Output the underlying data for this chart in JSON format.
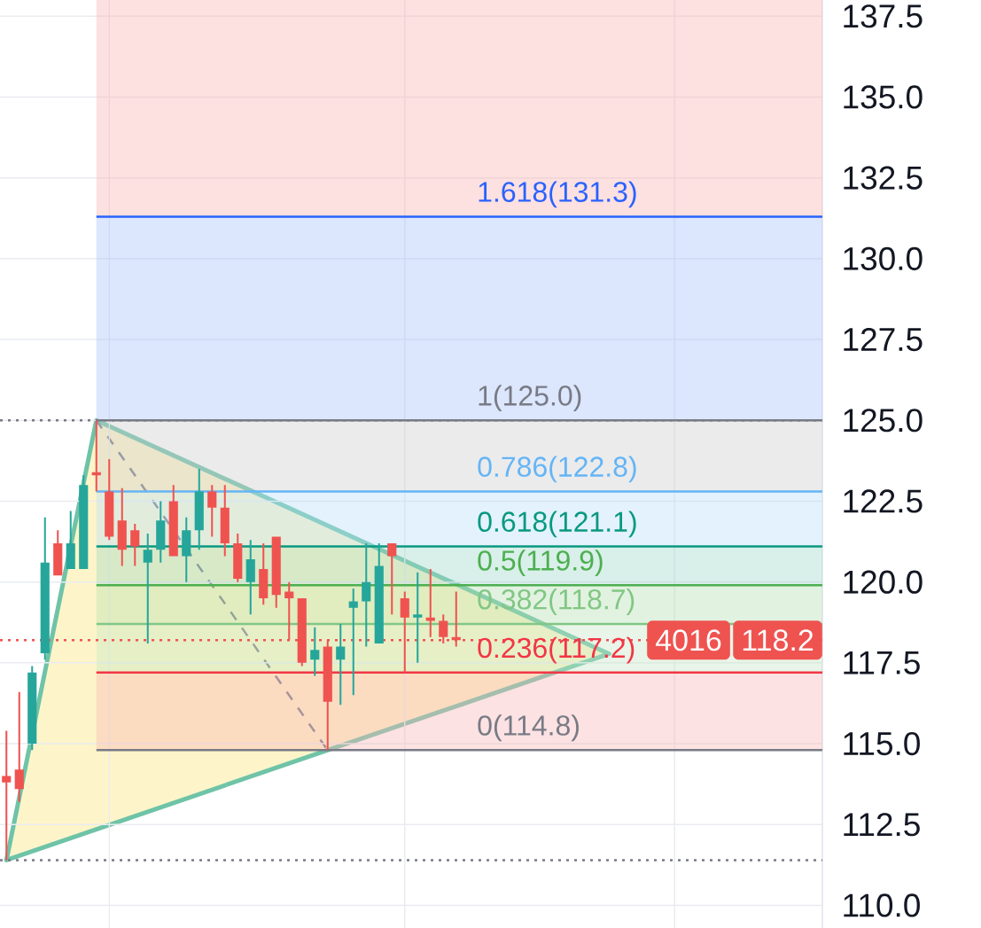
{
  "chart_data": {
    "type": "candlestick",
    "categories": [
      null,
      null,
      null,
      null,
      null,
      null,
      null,
      null,
      null,
      null,
      null,
      null,
      null,
      null,
      null,
      null,
      null,
      null,
      null,
      null,
      null,
      null,
      null,
      null,
      null,
      null,
      null,
      null,
      null,
      null,
      null,
      null,
      null,
      null,
      null,
      null,
      null,
      null,
      null,
      null,
      null,
      null,
      null,
      null,
      null,
      null,
      null,
      null,
      null,
      null,
      null,
      null,
      null,
      null,
      null,
      null,
      null,
      null,
      null,
      null,
      null,
      null,
      null,
      null
    ],
    "ohlc": [
      [
        114.0,
        115.4,
        111.4,
        113.8
      ],
      [
        114.2,
        116.6,
        113.2,
        113.6
      ],
      [
        115.0,
        117.4,
        114.8,
        117.2
      ],
      [
        117.8,
        122.0,
        117.6,
        120.6
      ],
      [
        121.2,
        121.6,
        120.2,
        120.2
      ],
      [
        120.4,
        122.2,
        120.4,
        121.2
      ],
      [
        120.4,
        123.3,
        120.4,
        123.0
      ],
      [
        123.4,
        125.0,
        122.8,
        123.3
      ],
      [
        122.8,
        123.8,
        121.3,
        121.4
      ],
      [
        121.9,
        122.9,
        120.5,
        121.0
      ],
      [
        121.6,
        121.8,
        120.5,
        121.1
      ],
      [
        120.6,
        121.5,
        118.1,
        121.0
      ],
      [
        121.0,
        122.5,
        120.6,
        121.9
      ],
      [
        122.5,
        123.0,
        120.8,
        120.8
      ],
      [
        120.8,
        122.0,
        120.0,
        121.6
      ],
      [
        121.6,
        123.5,
        121.0,
        122.8
      ],
      [
        122.8,
        123.0,
        121.4,
        122.3
      ],
      [
        122.3,
        123.0,
        120.8,
        121.2
      ],
      [
        121.2,
        121.5,
        120.0,
        120.1
      ],
      [
        120.0,
        121.3,
        119.0,
        120.7
      ],
      [
        120.4,
        121.2,
        119.3,
        119.5
      ],
      [
        121.4,
        121.4,
        119.2,
        119.6
      ],
      [
        119.7,
        120.0,
        118.2,
        119.5
      ],
      [
        119.5,
        119.5,
        117.4,
        117.5
      ],
      [
        117.6,
        118.6,
        117.1,
        117.9
      ],
      [
        118.0,
        118.2,
        114.8,
        116.3
      ],
      [
        117.6,
        118.7,
        116.2,
        118.0
      ],
      [
        119.2,
        119.8,
        116.5,
        119.4
      ],
      [
        119.4,
        121.2,
        118.0,
        120.0
      ],
      [
        118.1,
        121.2,
        118.1,
        120.5
      ],
      [
        121.2,
        121.2,
        119.0,
        120.8
      ],
      [
        119.5,
        119.7,
        117.2,
        118.9
      ],
      [
        118.9,
        120.3,
        117.5,
        119.0
      ],
      [
        118.9,
        120.4,
        118.3,
        118.8
      ],
      [
        118.8,
        119.0,
        118.1,
        118.3
      ],
      [
        118.3,
        119.7,
        118.0,
        118.2
      ],
      null,
      null,
      null,
      null,
      null,
      null,
      null,
      null,
      null,
      null,
      null,
      null,
      null,
      null,
      null,
      null,
      null,
      null,
      null,
      null,
      null,
      null,
      null,
      null,
      null,
      null,
      null,
      null
    ],
    "colors": [
      "#ef5350",
      "#ef5350",
      "#26a69a",
      "#26a69a",
      "#ef5350",
      "#26a69a",
      "#26a69a",
      "#ef5350",
      "#ef5350",
      "#ef5350",
      "#ef5350",
      "#26a69a",
      "#26a69a",
      "#ef5350",
      "#26a69a",
      "#26a69a",
      "#ef5350",
      "#ef5350",
      "#ef5350",
      "#26a69a",
      "#ef5350",
      "#ef5350",
      "#ef5350",
      "#ef5350",
      "#26a69a",
      "#ef5350",
      "#26a69a",
      "#26a69a",
      "#26a69a",
      "#26a69a",
      "#ef5350",
      "#ef5350",
      "#26a69a",
      "#ef5350",
      "#ef5350",
      "#ef5350",
      null,
      null,
      null,
      null,
      null,
      null,
      null,
      null,
      null,
      null,
      null,
      null,
      null,
      null,
      null,
      null,
      null,
      null,
      null,
      null,
      null,
      null,
      null,
      null,
      null,
      null,
      null,
      null
    ],
    "ylim": [
      109.3,
      138.0
    ],
    "yticks": [
      {
        "value": 110,
        "label": "110.0"
      },
      112.5,
      {
        "value": 115,
        "label": "115.0"
      },
      117.5,
      {
        "value": 120,
        "label": "120.0"
      },
      122.5,
      {
        "value": 125,
        "label": "125.0"
      },
      127.5,
      {
        "value": 130,
        "label": "130.0"
      },
      132.5,
      {
        "value": 135,
        "label": "135.0"
      },
      137.5
    ],
    "tick_labels": "y",
    "grid": true,
    "bands": [
      {
        "axis": "y",
        "from": 131.3,
        "to": 138.0,
        "color": "#fde0e0"
      },
      {
        "axis": "y",
        "from": 125.0,
        "to": 131.3,
        "color": "#dce6fc"
      },
      {
        "axis": "y",
        "from": 122.8,
        "to": 125.0,
        "color": "#ebebec"
      },
      {
        "axis": "y",
        "from": 121.1,
        "to": 122.8,
        "color": "#e3f2fd"
      },
      {
        "axis": "y",
        "from": 119.9,
        "to": 121.1,
        "color": "#d9efe9"
      },
      {
        "axis": "y",
        "from": 118.7,
        "to": 119.9,
        "color": "#e2f2e0"
      },
      {
        "axis": "y",
        "from": 117.2,
        "to": 118.7,
        "color": "#e8f5e8"
      },
      {
        "axis": "y",
        "from": 114.8,
        "to": 117.2,
        "color": "#fce2e2"
      }
    ],
    "ref_lines": [
      {
        "axis": "y",
        "value": 131.3,
        "label": "1.618(131.3)",
        "color": "#2962ff"
      },
      {
        "axis": "y",
        "value": 125.0,
        "label": "1(125.0)",
        "color": "#787b86"
      },
      {
        "axis": "y",
        "value": 122.8,
        "label": "0.786(122.8)",
        "color": "#64b5f6"
      },
      {
        "axis": "y",
        "value": 121.1,
        "label": "0.618(121.1)",
        "color": "#089981"
      },
      {
        "axis": "y",
        "value": 119.9,
        "label": "0.5(119.9)",
        "color": "#4caf50"
      },
      {
        "axis": "y",
        "value": 118.7,
        "label": "0.382(118.7)",
        "color": "#81c784"
      },
      {
        "axis": "y",
        "value": 117.2,
        "label": "0.236(117.2)",
        "color": "#f23645"
      },
      {
        "axis": "y",
        "value": 114.8,
        "label": "0(114.8)",
        "color": "#787b86"
      },
      {
        "axis": "y",
        "value": 125.0,
        "color": "#787b86",
        "line_style": "dotted"
      },
      {
        "axis": "y",
        "value": 111.4,
        "color": "#787b86",
        "line_style": "dotted"
      },
      {
        "axis": "y",
        "value": 118.2,
        "label": "118.2",
        "color": "#ef5350",
        "line_style": "dotted"
      }
    ],
    "annotations": [
      "4016"
    ]
  }
}
